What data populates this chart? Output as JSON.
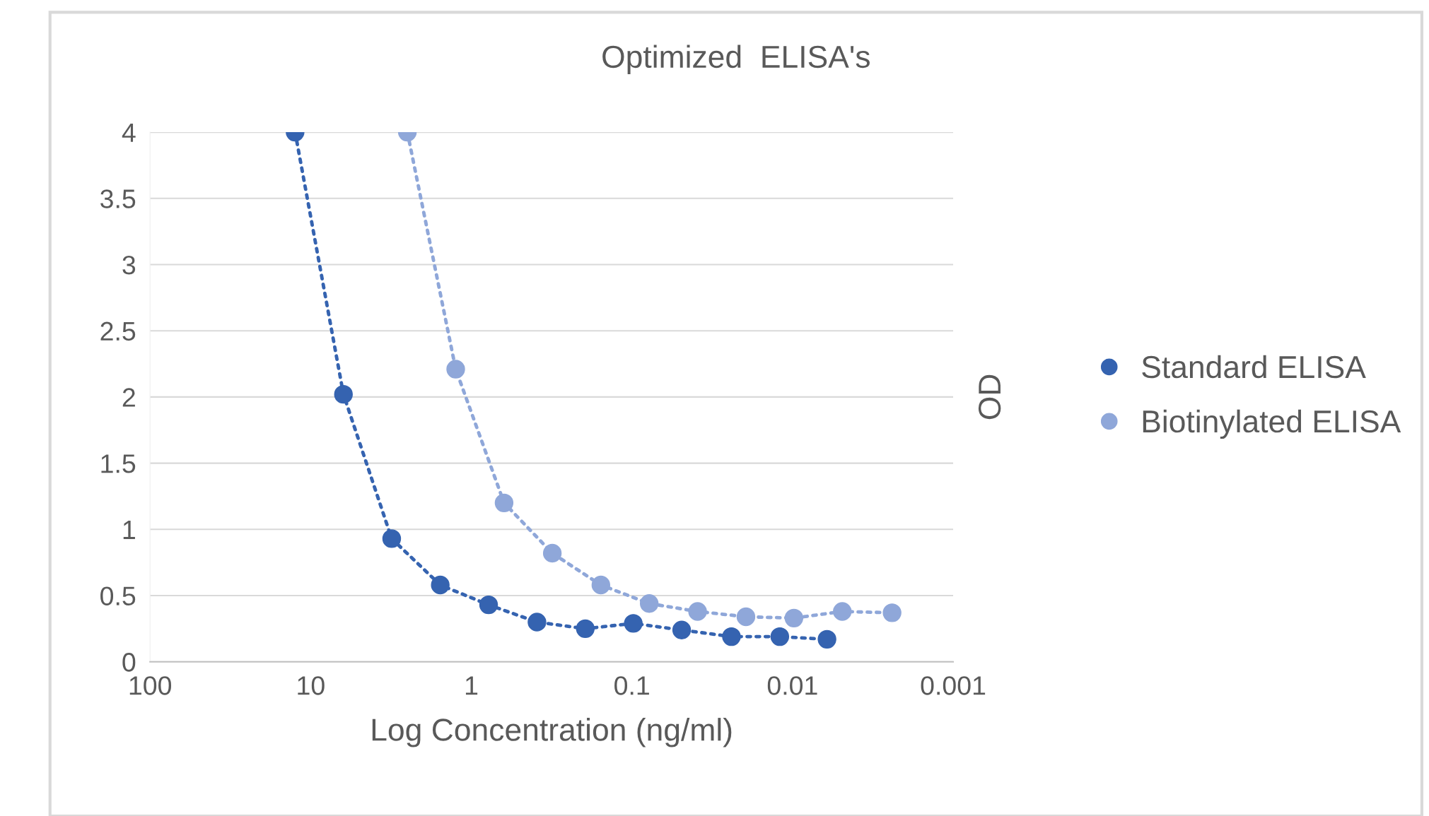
{
  "chart_data": {
    "type": "line",
    "title": "Optimized  ELISA's",
    "xlabel": "Log Concentration (ng/ml)",
    "ylabel": "OD",
    "log": "x",
    "xlim": [
      100,
      0.001
    ],
    "xticks": [
      100,
      10,
      1,
      {
        "value": 0.1,
        "label": "0.1"
      },
      {
        "value": 0.01,
        "label": "0.01"
      },
      {
        "value": 0.001,
        "label": "0.001"
      }
    ],
    "ylim": [
      0,
      4
    ],
    "yticks": [
      0,
      0.5,
      1,
      1.5,
      2,
      2.5,
      3,
      3.5,
      4
    ],
    "grid": "y",
    "legend": "right",
    "marker": "circle",
    "line_style": "dotted",
    "series": [
      {
        "name": "Standard ELISA",
        "color": "#3563b0",
        "x": [
          12.5,
          6.25,
          3.13,
          1.56,
          0.78,
          0.39,
          0.195,
          0.098,
          0.049,
          0.024,
          0.012,
          0.0061
        ],
        "values": [
          4.0,
          2.02,
          0.93,
          0.58,
          0.43,
          0.3,
          0.25,
          0.29,
          0.24,
          0.19,
          0.19,
          0.17
        ]
      },
      {
        "name": "Biotinylated ELISA",
        "color": "#8fa7d9",
        "x": [
          2.5,
          1.25,
          0.625,
          0.313,
          0.156,
          0.078,
          0.039,
          0.0195,
          0.0098,
          0.0049,
          0.0024
        ],
        "values": [
          4.0,
          2.21,
          1.2,
          0.82,
          0.58,
          0.44,
          0.38,
          0.34,
          0.33,
          0.38,
          0.37
        ]
      }
    ]
  }
}
